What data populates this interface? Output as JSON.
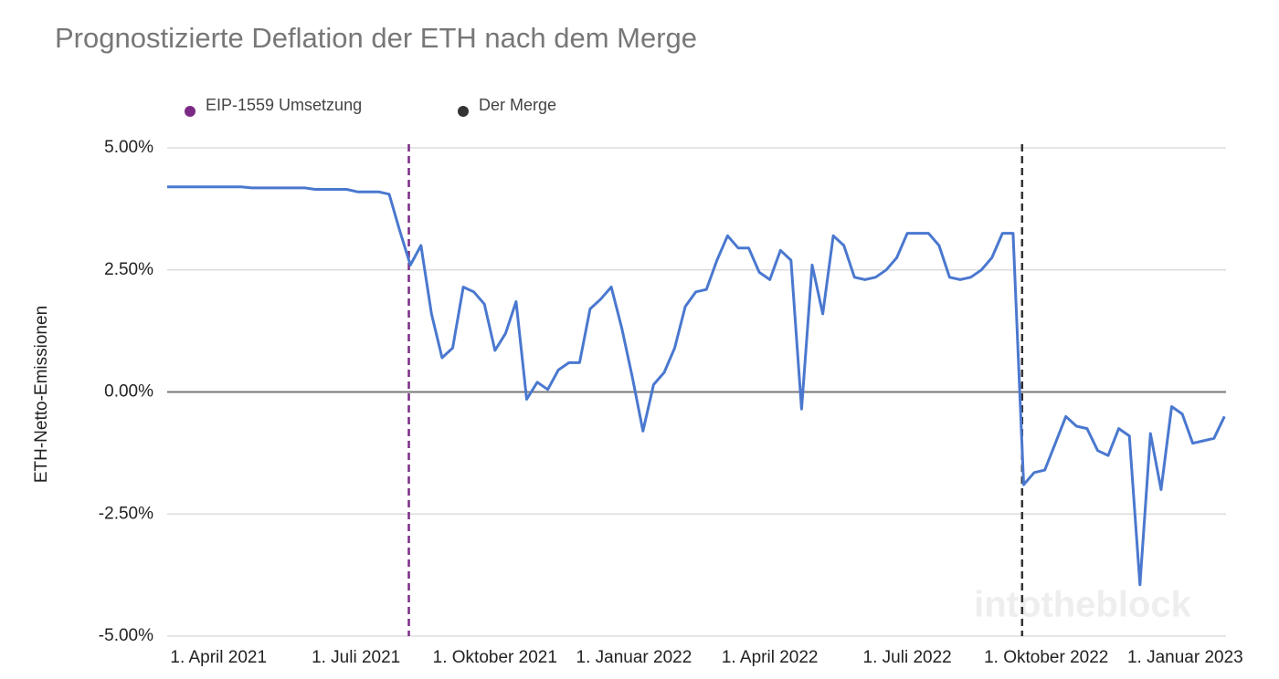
{
  "chart_data": {
    "type": "line",
    "title": "Prognostizierte Deflation der ETH nach dem Merge",
    "y_label": "ETH-Netto-Emissionen",
    "watermark": "intotheblock",
    "legend_position": "top-left",
    "grid": true,
    "events": [
      {
        "name": "EIP-1559 Umsetzung",
        "date": "2021-08-05",
        "color": "#7b2a86"
      },
      {
        "name": "Der Merge",
        "date": "2022-09-15",
        "color": "#333333"
      }
    ],
    "xlim": [
      "2021-02-26",
      "2023-01-28"
    ],
    "xticks": [
      {
        "value": "2021-04-01",
        "label": "1. April 2021"
      },
      {
        "value": "2021-07-01",
        "label": "1. Juli 2021"
      },
      {
        "value": "2021-10-01",
        "label": "1. Oktober 2021"
      },
      {
        "value": "2022-01-01",
        "label": "1. Januar 2022"
      },
      {
        "value": "2022-04-01",
        "label": "1. April 2022"
      },
      {
        "value": "2022-07-01",
        "label": "1. Juli 2022"
      },
      {
        "value": "2022-10-01",
        "label": "1. Oktober 2022"
      },
      {
        "value": "2023-01-01",
        "label": "1. Januar 2023"
      }
    ],
    "ylim": [
      -5,
      5
    ],
    "yticks": [
      {
        "value": -5,
        "label": "-5.00%"
      },
      {
        "value": -2.5,
        "label": "-2.50%"
      },
      {
        "value": 0,
        "label": "0.00%"
      },
      {
        "value": 2.5,
        "label": "2.50%"
      },
      {
        "value": 5,
        "label": "5.00%"
      }
    ],
    "x": [
      "2021-02-26",
      "2021-03-05",
      "2021-03-12",
      "2021-03-19",
      "2021-03-26",
      "2021-04-02",
      "2021-04-09",
      "2021-04-16",
      "2021-04-23",
      "2021-04-30",
      "2021-05-07",
      "2021-05-14",
      "2021-05-21",
      "2021-05-28",
      "2021-06-04",
      "2021-06-11",
      "2021-06-18",
      "2021-06-25",
      "2021-07-02",
      "2021-07-09",
      "2021-07-16",
      "2021-07-23",
      "2021-07-30",
      "2021-08-06",
      "2021-08-13",
      "2021-08-20",
      "2021-08-27",
      "2021-09-03",
      "2021-09-10",
      "2021-09-17",
      "2021-09-24",
      "2021-10-01",
      "2021-10-08",
      "2021-10-15",
      "2021-10-22",
      "2021-10-29",
      "2021-11-05",
      "2021-11-12",
      "2021-11-19",
      "2021-11-26",
      "2021-12-03",
      "2021-12-10",
      "2021-12-17",
      "2021-12-24",
      "2021-12-31",
      "2022-01-07",
      "2022-01-14",
      "2022-01-21",
      "2022-01-28",
      "2022-02-04",
      "2022-02-11",
      "2022-02-18",
      "2022-02-25",
      "2022-03-04",
      "2022-03-11",
      "2022-03-18",
      "2022-03-25",
      "2022-04-01",
      "2022-04-08",
      "2022-04-15",
      "2022-04-22",
      "2022-04-29",
      "2022-05-06",
      "2022-05-13",
      "2022-05-20",
      "2022-05-27",
      "2022-06-03",
      "2022-06-10",
      "2022-06-17",
      "2022-06-24",
      "2022-07-01",
      "2022-07-08",
      "2022-07-15",
      "2022-07-22",
      "2022-07-29",
      "2022-08-05",
      "2022-08-12",
      "2022-08-19",
      "2022-08-26",
      "2022-09-02",
      "2022-09-09",
      "2022-09-16",
      "2022-09-23",
      "2022-09-30",
      "2022-10-07",
      "2022-10-14",
      "2022-10-21",
      "2022-10-28",
      "2022-11-04",
      "2022-11-11",
      "2022-11-18",
      "2022-11-25",
      "2022-12-02",
      "2022-12-09",
      "2022-12-16",
      "2022-12-23",
      "2022-12-30",
      "2023-01-06",
      "2023-01-13",
      "2023-01-20",
      "2023-01-27"
    ],
    "series": [
      {
        "name": "ETH-Netto-Emissionen",
        "color": "#4a78cf",
        "values": [
          4.2,
          4.2,
          4.2,
          4.2,
          4.2,
          4.2,
          4.2,
          4.2,
          4.18,
          4.18,
          4.18,
          4.18,
          4.18,
          4.18,
          4.15,
          4.15,
          4.15,
          4.15,
          4.1,
          4.1,
          4.1,
          4.05,
          3.3,
          2.6,
          3.0,
          1.6,
          0.7,
          0.9,
          2.15,
          2.05,
          1.8,
          0.85,
          1.2,
          1.85,
          -0.15,
          0.2,
          0.05,
          0.45,
          0.6,
          0.6,
          1.7,
          1.9,
          2.15,
          1.3,
          0.3,
          -0.8,
          0.15,
          0.4,
          0.9,
          1.75,
          2.05,
          2.1,
          2.7,
          3.2,
          2.95,
          2.95,
          2.45,
          2.3,
          2.9,
          2.7,
          -0.35,
          2.6,
          1.6,
          3.2,
          3.0,
          2.35,
          2.3,
          2.35,
          2.5,
          2.75,
          3.25,
          3.25,
          3.25,
          3.0,
          2.35,
          2.3,
          2.35,
          2.5,
          2.75,
          3.25,
          3.25,
          -1.9,
          -1.65,
          -1.6,
          -1.05,
          -0.5,
          -0.7,
          -0.75,
          -1.2,
          -1.3,
          -0.75,
          -0.9,
          -3.95,
          -0.85,
          -2.0,
          -0.3,
          -0.45,
          -1.05,
          -1.0,
          -0.95,
          -0.5
        ]
      }
    ]
  }
}
